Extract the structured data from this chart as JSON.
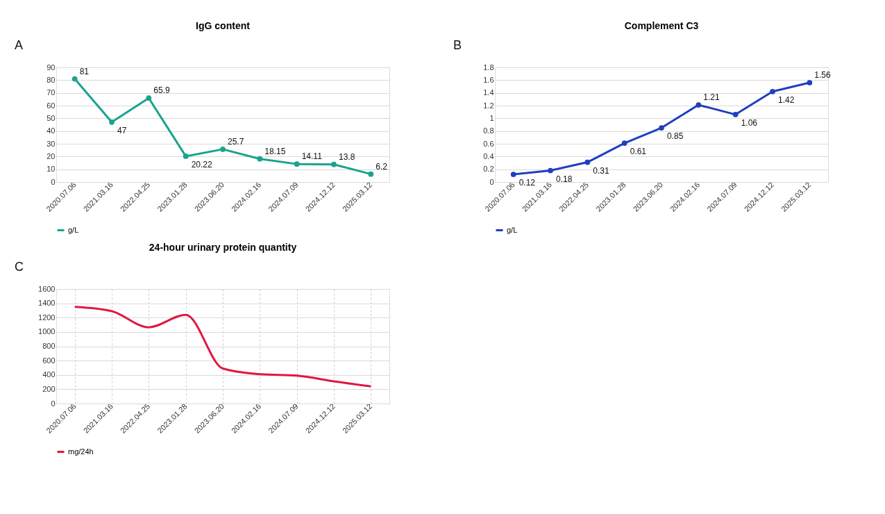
{
  "chart_data": [
    {
      "type": "line",
      "title": "IgG content",
      "annotations": [
        "A"
      ],
      "categories": [
        "2020.07.06",
        "2021.03.16",
        "2022.04.25",
        "2023.01.28",
        "2023.06.20",
        "2024.02.16",
        "2024.07.09",
        "2024.12.12",
        "2025.03.12"
      ],
      "series": [
        {
          "name": "g/L",
          "color": "#1aa38e",
          "values": [
            81,
            47,
            65.9,
            20.22,
            25.7,
            18.15,
            14.11,
            13.8,
            6.2
          ]
        }
      ],
      "ylim": [
        0,
        90
      ],
      "yticks": [
        0,
        10,
        20,
        30,
        40,
        50,
        60,
        70,
        80,
        90
      ],
      "grid": "y",
      "legend": "bottom",
      "marker": "circle",
      "line_style": "solid",
      "data_labels": true
    },
    {
      "type": "line",
      "title": "Complement C3",
      "annotations": [
        "B"
      ],
      "categories": [
        "2020.07.06",
        "2021.03.16",
        "2022.04.25",
        "2023.01.28",
        "2023.06.20",
        "2024.02.16",
        "2024.07.09",
        "2024.12.12",
        "2025.03.12"
      ],
      "series": [
        {
          "name": "g/L",
          "color": "#1f3fbf",
          "values": [
            0.12,
            0.18,
            0.31,
            0.61,
            0.85,
            1.21,
            1.06,
            1.42,
            1.56
          ]
        }
      ],
      "ylim": [
        0,
        1.8
      ],
      "yticks": [
        0,
        0.2,
        0.4,
        0.6,
        0.8,
        1,
        1.2,
        1.4,
        1.6,
        1.8
      ],
      "grid": "y",
      "legend": "bottom",
      "marker": "circle",
      "line_style": "solid",
      "data_labels": true
    },
    {
      "type": "line",
      "title": "24-hour urinary protein quantity",
      "annotations": [
        "C"
      ],
      "categories": [
        "2020.07.06",
        "2021.03.16",
        "2022.04.25",
        "2023.01.28",
        "2023.06.20",
        "2024.02.16",
        "2024.07.09",
        "2024.12.12",
        "2025.03.12"
      ],
      "series": [
        {
          "name": "mg/24h",
          "color": "#e0173f",
          "values": [
            1350,
            1290,
            1065,
            1240,
            490,
            410,
            390,
            310,
            240
          ]
        }
      ],
      "ylim": [
        0,
        1600
      ],
      "yticks": [
        0,
        200,
        400,
        600,
        800,
        1000,
        1200,
        1400,
        1600
      ],
      "grid": true,
      "legend": "bottom",
      "marker": "none",
      "line_style": "solid"
    }
  ]
}
